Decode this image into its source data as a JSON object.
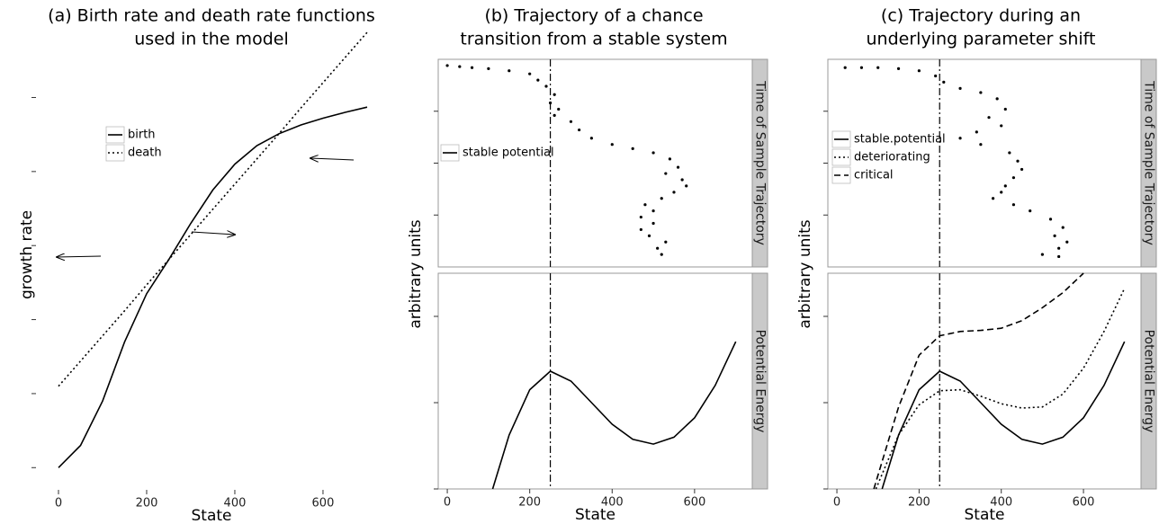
{
  "chart_data": [
    {
      "type": "line",
      "title": [
        "(a) Birth rate and death rate functions",
        "used in the model"
      ],
      "xlabel": "State",
      "ylabel": "growth rate",
      "xlim": [
        -51,
        745
      ],
      "xticks": [
        0,
        200,
        400,
        600
      ],
      "ylim": [
        -0.3,
        6.05
      ],
      "yticks": [
        0,
        1,
        2,
        3,
        4,
        5
      ],
      "x": [
        0,
        50,
        100,
        150,
        200,
        250,
        300,
        350,
        400,
        450,
        500,
        550,
        600,
        650,
        700
      ],
      "series": [
        {
          "name": "birth",
          "color": "#000000",
          "dash": "solid",
          "values": [
            0,
            0.3,
            0.9,
            1.7,
            2.35,
            2.81,
            3.3,
            3.75,
            4.1,
            4.35,
            4.51,
            4.63,
            4.72,
            4.8,
            4.87
          ]
        },
        {
          "name": "death",
          "color": "#000000",
          "dash": "dotted",
          "values": [
            1.1,
            1.44,
            1.78,
            2.12,
            2.47,
            2.81,
            3.15,
            3.49,
            3.83,
            4.17,
            4.51,
            4.86,
            5.2,
            5.54,
            5.88
          ]
        }
      ]
    },
    {
      "type": "facet",
      "title": [
        "(b) Trajectory of a chance",
        "transition from a stable system"
      ],
      "xlabel": "State",
      "ylabel": "arbitrary units",
      "xlim": [
        -22,
        740
      ],
      "xticks": [
        0,
        200,
        400,
        600
      ],
      "vline": 250,
      "panels": [
        {
          "type": "scatter",
          "strip": "Time of Sample Trajectory",
          "color": "#000000",
          "ylim": [
            0,
            10
          ],
          "yticks": [
            2.5,
            5,
            7.5
          ],
          "x": [
            0,
            30,
            60,
            100,
            150,
            200,
            220,
            240,
            260,
            250,
            270,
            260,
            300,
            320,
            350,
            400,
            450,
            500,
            540,
            560,
            530,
            570,
            580,
            550,
            520,
            480,
            500,
            470,
            500,
            470,
            490,
            530,
            510,
            520
          ],
          "y": [
            9.7,
            9.65,
            9.6,
            9.55,
            9.45,
            9.3,
            9.0,
            8.7,
            8.3,
            7.9,
            7.6,
            7.3,
            7.0,
            6.6,
            6.2,
            5.9,
            5.7,
            5.5,
            5.2,
            4.8,
            4.5,
            4.2,
            3.9,
            3.6,
            3.3,
            3.0,
            2.7,
            2.4,
            2.1,
            1.8,
            1.5,
            1.2,
            0.9,
            0.6
          ]
        },
        {
          "type": "line",
          "strip": "Potential Energy",
          "ylim": [
            0,
            10
          ],
          "yticks": [
            0,
            4,
            8
          ],
          "series": [
            {
              "name": "stable potential",
              "color": "#000000",
              "dash": "solid",
              "x": [
                110,
                150,
                200,
                250,
                300,
                350,
                400,
                450,
                500,
                550,
                600,
                650,
                700
              ],
              "values": [
                0,
                2.5,
                4.6,
                5.46,
                5.0,
                4.0,
                3.0,
                2.3,
                2.08,
                2.4,
                3.3,
                4.8,
                6.83
              ]
            }
          ]
        }
      ]
    },
    {
      "type": "facet",
      "title": [
        "(c) Trajectory during an",
        "underlying parameter shift"
      ],
      "xlabel": "State",
      "ylabel": "arbitrary units",
      "xlim": [
        -22,
        740
      ],
      "xticks": [
        0,
        200,
        400,
        600
      ],
      "vline": 250,
      "panels": [
        {
          "type": "scatter",
          "strip": "Time of Sample Trajectory",
          "color": "#000000",
          "ylim": [
            0,
            10
          ],
          "yticks": [
            2.5,
            5,
            7.5
          ],
          "x": [
            20,
            60,
            100,
            150,
            200,
            240,
            260,
            300,
            350,
            390,
            410,
            370,
            400,
            340,
            300,
            350,
            420,
            440,
            450,
            430,
            410,
            400,
            380,
            430,
            470,
            520,
            550,
            530,
            560,
            540,
            500,
            540
          ],
          "y": [
            9.6,
            9.6,
            9.6,
            9.55,
            9.45,
            9.2,
            8.9,
            8.6,
            8.4,
            8.1,
            7.6,
            7.2,
            6.8,
            6.5,
            6.2,
            5.9,
            5.5,
            5.1,
            4.7,
            4.3,
            3.9,
            3.6,
            3.3,
            3.0,
            2.7,
            2.3,
            1.9,
            1.5,
            1.2,
            0.9,
            0.6,
            0.5
          ]
        },
        {
          "type": "line",
          "strip": "Potential Energy",
          "ylim": [
            0,
            10
          ],
          "yticks": [
            0,
            4,
            8
          ],
          "series": [
            {
              "name": "stable.potential",
              "color": "#000000",
              "dash": "solid",
              "x": [
                110,
                150,
                200,
                250,
                300,
                350,
                400,
                450,
                500,
                550,
                600,
                650,
                700
              ],
              "values": [
                0,
                2.5,
                4.6,
                5.46,
                5.0,
                4.0,
                3.0,
                2.3,
                2.08,
                2.4,
                3.3,
                4.8,
                6.83
              ]
            },
            {
              "name": "deteriorating",
              "color": "#000000",
              "dash": "dotted",
              "x": [
                95,
                150,
                200,
                250,
                300,
                350,
                400,
                450,
                500,
                550,
                600,
                650,
                700
              ],
              "values": [
                0,
                2.5,
                3.9,
                4.55,
                4.6,
                4.3,
                3.95,
                3.75,
                3.8,
                4.4,
                5.6,
                7.3,
                9.3
              ]
            },
            {
              "name": "critical",
              "color": "#000000",
              "dash": "dashed",
              "x": [
                90,
                150,
                200,
                250,
                300,
                350,
                400,
                450,
                500,
                550,
                600
              ],
              "values": [
                0,
                3.8,
                6.2,
                7.1,
                7.3,
                7.35,
                7.45,
                7.8,
                8.4,
                9.1,
                10.0
              ]
            }
          ]
        }
      ]
    }
  ]
}
